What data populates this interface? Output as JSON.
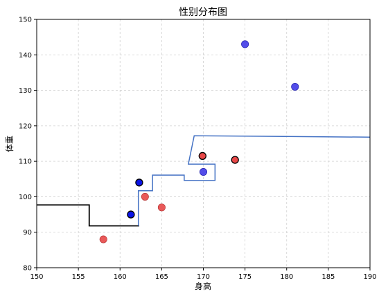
{
  "chart_data": {
    "type": "scatter",
    "title": "性别分布图",
    "xlabel": "身高",
    "ylabel": "体重",
    "xlim": [
      150,
      190
    ],
    "ylim": [
      80,
      150
    ],
    "xticks": [
      150,
      155,
      160,
      165,
      170,
      175,
      180,
      185,
      190
    ],
    "yticks": [
      80,
      90,
      100,
      110,
      120,
      130,
      140,
      150
    ],
    "grid": true,
    "colors": {
      "blue_point": "#4a43e8",
      "blue_point_edge": "#1010a0",
      "red_point": "#e85050",
      "red_point_edge": "#b03030",
      "highlight_blue": "#0a14e6",
      "highlight_red": "#e84848",
      "highlight_edge": "#000000",
      "boundary_blue": "#4472c4",
      "boundary_black": "#000000",
      "grid": "#d0d0d0"
    },
    "series": [
      {
        "color_key": "blue",
        "points": [
          [
            175,
            143
          ],
          [
            181,
            131
          ],
          [
            170,
            107
          ]
        ]
      },
      {
        "color_key": "red",
        "points": [
          [
            158,
            88
          ],
          [
            163,
            100
          ],
          [
            165,
            97
          ]
        ]
      }
    ],
    "highlighted_points": [
      {
        "x": 161.3,
        "y": 95,
        "color_key": "blue"
      },
      {
        "x": 162.3,
        "y": 104,
        "color_key": "blue"
      },
      {
        "x": 169.9,
        "y": 111.5,
        "color_key": "red"
      },
      {
        "x": 173.8,
        "y": 110.4,
        "color_key": "red"
      }
    ],
    "boundary_lines": [
      {
        "color_key": "black",
        "points": [
          [
            150,
            97.7
          ],
          [
            156.3,
            97.7
          ],
          [
            156.3,
            91.8
          ],
          [
            162.3,
            91.8
          ]
        ]
      },
      {
        "color_key": "blue",
        "points": [
          [
            162.2,
            91.8
          ],
          [
            162.2,
            101.7
          ],
          [
            163.9,
            101.7
          ],
          [
            163.9,
            106.1
          ],
          [
            167.7,
            106.1
          ],
          [
            167.7,
            104.6
          ],
          [
            171.4,
            104.6
          ],
          [
            171.4,
            109.2
          ],
          [
            168.2,
            109.2
          ],
          [
            168.9,
            117.2
          ],
          [
            190,
            116.8
          ]
        ]
      }
    ]
  }
}
